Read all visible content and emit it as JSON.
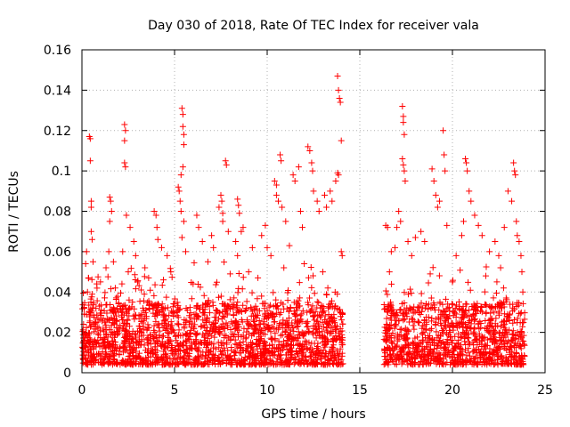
{
  "chart_data": {
    "type": "scatter",
    "title": "Day 030 of 2018, Rate Of TEC Index for receiver vala",
    "xlabel": "GPS time / hours",
    "ylabel": "ROTI / TECUs",
    "xlim": [
      0,
      25
    ],
    "ylim": [
      0,
      0.16
    ],
    "x_ticks": [
      0,
      5,
      10,
      15,
      20,
      25
    ],
    "x_tick_labels": [
      "0",
      "5",
      "10",
      "15",
      "20",
      "25"
    ],
    "y_ticks": [
      0,
      0.02,
      0.04,
      0.06,
      0.08,
      0.1,
      0.12,
      0.14,
      0.16
    ],
    "y_tick_labels": [
      "0",
      "0.02",
      "0.04",
      "0.06",
      "0.08",
      "0.1",
      "0.12",
      "0.14",
      "0.16"
    ],
    "grid": true,
    "marker": "+",
    "marker_color": "#ff0000",
    "data_gap_hours": [
      14.3,
      16.3
    ],
    "series": [
      {
        "name": "ROTI",
        "points": [
          [
            0.2,
            0.054
          ],
          [
            0.25,
            0.06
          ],
          [
            0.4,
            0.117
          ],
          [
            0.45,
            0.116
          ],
          [
            0.45,
            0.105
          ],
          [
            0.5,
            0.085
          ],
          [
            0.5,
            0.082
          ],
          [
            0.5,
            0.07
          ],
          [
            0.55,
            0.066
          ],
          [
            0.35,
            0.047
          ],
          [
            0.3,
            0.04
          ],
          [
            0.6,
            0.055
          ],
          [
            1.0,
            0.045
          ],
          [
            1.3,
            0.052
          ],
          [
            1.5,
            0.087
          ],
          [
            1.55,
            0.085
          ],
          [
            1.6,
            0.08
          ],
          [
            1.5,
            0.075
          ],
          [
            1.45,
            0.06
          ],
          [
            1.7,
            0.055
          ],
          [
            1.8,
            0.042
          ],
          [
            2.3,
            0.123
          ],
          [
            2.35,
            0.12
          ],
          [
            2.3,
            0.115
          ],
          [
            2.3,
            0.104
          ],
          [
            2.35,
            0.102
          ],
          [
            2.4,
            0.078
          ],
          [
            2.2,
            0.06
          ],
          [
            2.5,
            0.05
          ],
          [
            2.6,
            0.072
          ],
          [
            2.8,
            0.065
          ],
          [
            2.9,
            0.058
          ],
          [
            3.0,
            0.045
          ],
          [
            3.4,
            0.052
          ],
          [
            3.6,
            0.047
          ],
          [
            3.9,
            0.08
          ],
          [
            4.0,
            0.078
          ],
          [
            4.05,
            0.072
          ],
          [
            4.1,
            0.066
          ],
          [
            4.3,
            0.062
          ],
          [
            4.6,
            0.058
          ],
          [
            4.8,
            0.05
          ],
          [
            5.2,
            0.092
          ],
          [
            5.25,
            0.09
          ],
          [
            5.3,
            0.085
          ],
          [
            5.35,
            0.08
          ],
          [
            5.4,
            0.131
          ],
          [
            5.45,
            0.128
          ],
          [
            5.45,
            0.122
          ],
          [
            5.5,
            0.118
          ],
          [
            5.5,
            0.113
          ],
          [
            5.45,
            0.102
          ],
          [
            5.35,
            0.098
          ],
          [
            5.5,
            0.075
          ],
          [
            5.6,
            0.06
          ],
          [
            5.4,
            0.067
          ],
          [
            6.2,
            0.078
          ],
          [
            6.3,
            0.072
          ],
          [
            6.5,
            0.065
          ],
          [
            6.8,
            0.055
          ],
          [
            7.0,
            0.068
          ],
          [
            7.1,
            0.062
          ],
          [
            7.4,
            0.082
          ],
          [
            7.5,
            0.088
          ],
          [
            7.55,
            0.085
          ],
          [
            7.6,
            0.079
          ],
          [
            7.6,
            0.075
          ],
          [
            7.75,
            0.105
          ],
          [
            7.8,
            0.103
          ],
          [
            7.9,
            0.07
          ],
          [
            8.3,
            0.065
          ],
          [
            8.4,
            0.058
          ],
          [
            8.4,
            0.086
          ],
          [
            8.45,
            0.083
          ],
          [
            8.5,
            0.079
          ],
          [
            8.6,
            0.07
          ],
          [
            8.7,
            0.072
          ],
          [
            9.0,
            0.05
          ],
          [
            9.2,
            0.062
          ],
          [
            9.7,
            0.068
          ],
          [
            9.9,
            0.073
          ],
          [
            10.0,
            0.062
          ],
          [
            10.2,
            0.058
          ],
          [
            10.4,
            0.095
          ],
          [
            10.5,
            0.093
          ],
          [
            10.5,
            0.088
          ],
          [
            10.6,
            0.085
          ],
          [
            10.7,
            0.108
          ],
          [
            10.75,
            0.105
          ],
          [
            10.8,
            0.082
          ],
          [
            11.0,
            0.075
          ],
          [
            11.2,
            0.063
          ],
          [
            11.4,
            0.098
          ],
          [
            11.5,
            0.095
          ],
          [
            11.7,
            0.102
          ],
          [
            11.8,
            0.08
          ],
          [
            11.9,
            0.072
          ],
          [
            12.2,
            0.112
          ],
          [
            12.3,
            0.11
          ],
          [
            12.4,
            0.104
          ],
          [
            12.45,
            0.1
          ],
          [
            12.5,
            0.09
          ],
          [
            12.7,
            0.085
          ],
          [
            12.8,
            0.08
          ],
          [
            13.1,
            0.088
          ],
          [
            13.2,
            0.082
          ],
          [
            13.4,
            0.09
          ],
          [
            13.5,
            0.085
          ],
          [
            13.7,
            0.095
          ],
          [
            13.8,
            0.099
          ],
          [
            13.85,
            0.098
          ],
          [
            13.8,
            0.147
          ],
          [
            13.85,
            0.14
          ],
          [
            13.9,
            0.136
          ],
          [
            13.95,
            0.134
          ],
          [
            14.0,
            0.115
          ],
          [
            14.0,
            0.06
          ],
          [
            14.05,
            0.058
          ],
          [
            16.4,
            0.073
          ],
          [
            16.5,
            0.072
          ],
          [
            16.7,
            0.06
          ],
          [
            16.9,
            0.062
          ],
          [
            17.0,
            0.072
          ],
          [
            17.1,
            0.08
          ],
          [
            17.2,
            0.075
          ],
          [
            17.3,
            0.132
          ],
          [
            17.35,
            0.127
          ],
          [
            17.35,
            0.124
          ],
          [
            17.4,
            0.118
          ],
          [
            17.3,
            0.106
          ],
          [
            17.35,
            0.103
          ],
          [
            17.4,
            0.1
          ],
          [
            17.45,
            0.095
          ],
          [
            17.6,
            0.065
          ],
          [
            17.8,
            0.058
          ],
          [
            18.0,
            0.067
          ],
          [
            18.3,
            0.07
          ],
          [
            18.5,
            0.065
          ],
          [
            18.9,
            0.101
          ],
          [
            19.0,
            0.095
          ],
          [
            19.1,
            0.088
          ],
          [
            19.2,
            0.082
          ],
          [
            19.3,
            0.085
          ],
          [
            19.5,
            0.12
          ],
          [
            19.55,
            0.108
          ],
          [
            19.6,
            0.1
          ],
          [
            19.7,
            0.073
          ],
          [
            20.2,
            0.058
          ],
          [
            20.5,
            0.068
          ],
          [
            20.6,
            0.075
          ],
          [
            20.7,
            0.106
          ],
          [
            20.75,
            0.104
          ],
          [
            20.8,
            0.1
          ],
          [
            20.9,
            0.09
          ],
          [
            21.0,
            0.085
          ],
          [
            21.2,
            0.078
          ],
          [
            21.4,
            0.073
          ],
          [
            21.6,
            0.068
          ],
          [
            22.0,
            0.06
          ],
          [
            22.3,
            0.065
          ],
          [
            22.5,
            0.058
          ],
          [
            22.6,
            0.052
          ],
          [
            22.8,
            0.072
          ],
          [
            23.0,
            0.09
          ],
          [
            23.2,
            0.085
          ],
          [
            23.3,
            0.104
          ],
          [
            23.35,
            0.1
          ],
          [
            23.4,
            0.098
          ],
          [
            23.45,
            0.075
          ],
          [
            23.5,
            0.068
          ],
          [
            23.6,
            0.065
          ],
          [
            23.7,
            0.058
          ],
          [
            23.75,
            0.05
          ],
          [
            22.4,
            0.045
          ],
          [
            23.8,
            0.04
          ],
          [
            0.8,
            0.044
          ],
          [
            3.2,
            0.041
          ],
          [
            4.4,
            0.046
          ],
          [
            6.0,
            0.044
          ],
          [
            8.0,
            0.049
          ],
          [
            9.5,
            0.047
          ],
          [
            10.9,
            0.052
          ],
          [
            12.0,
            0.054
          ],
          [
            13.0,
            0.05
          ],
          [
            16.6,
            0.05
          ],
          [
            18.8,
            0.049
          ],
          [
            20.0,
            0.045
          ],
          [
            21.8,
            0.048
          ]
        ]
      }
    ],
    "noise_band": {
      "segments": [
        [
          0,
          14.1
        ],
        [
          16.3,
          23.9
        ]
      ],
      "floor": 0.004,
      "typical_max": 0.035
    }
  }
}
